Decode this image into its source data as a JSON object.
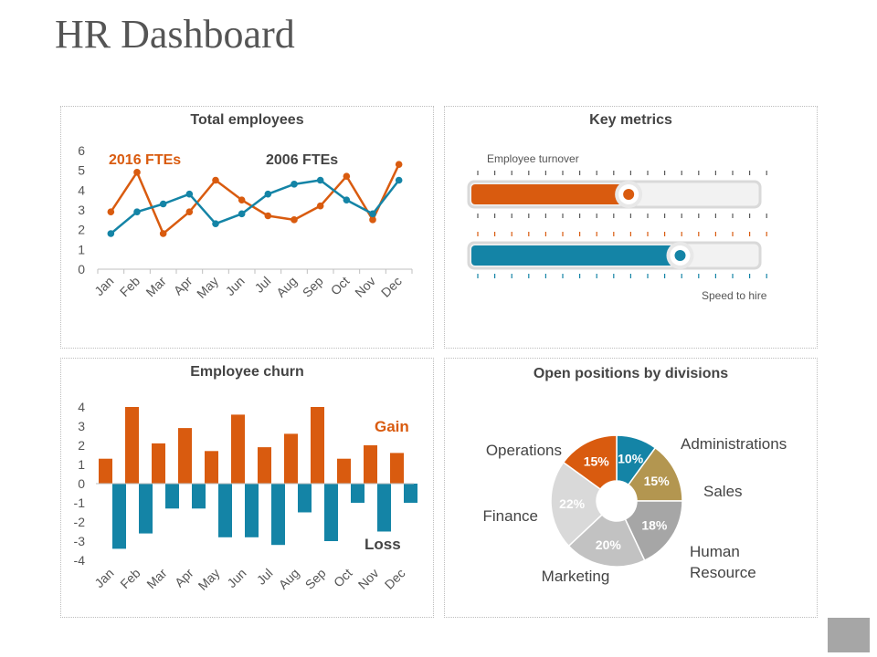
{
  "page": {
    "title": "HR Dashboard"
  },
  "colors": {
    "orange": "#d95b0f",
    "teal": "#1484a6",
    "gold": "#b39650",
    "gray_light": "#d9d9d9",
    "gray_mid": "#c2c2c2",
    "gray_dark": "#a6a6a6",
    "track": "#f2f2f2",
    "track_border": "#d9d9d9"
  },
  "panels": {
    "total_employees": {
      "title": "Total employees"
    },
    "key_metrics": {
      "title": "Key metrics"
    },
    "employee_churn": {
      "title": "Employee churn"
    },
    "open_positions": {
      "title": "Open positions by divisions"
    }
  },
  "chart_data": [
    {
      "id": "total-employees",
      "type": "line",
      "title": "Total employees",
      "categories": [
        "Jan",
        "Feb",
        "Mar",
        "Apr",
        "May",
        "Jun",
        "Jul",
        "Aug",
        "Sep",
        "Oct",
        "Nov",
        "Dec"
      ],
      "ylim": [
        0,
        6
      ],
      "yticks": [
        "0",
        "1",
        "2",
        "3",
        "4",
        "5",
        "6"
      ],
      "grid": false,
      "series": [
        {
          "name": "2016 FTEs",
          "color": "#d95b0f",
          "values": [
            2.9,
            4.9,
            1.8,
            2.9,
            4.5,
            3.5,
            2.7,
            2.5,
            3.2,
            4.7,
            2.5,
            5.3
          ]
        },
        {
          "name": "2006 FTEs",
          "color": "#1484a6",
          "values": [
            1.8,
            2.9,
            3.3,
            3.8,
            2.3,
            2.8,
            3.8,
            4.3,
            4.5,
            3.5,
            2.8,
            4.5
          ]
        }
      ]
    },
    {
      "id": "key-metrics",
      "type": "bar",
      "title": "Key metrics",
      "orientation": "horizontal-gauge",
      "series": [
        {
          "name": "Employee turnover",
          "color": "#d95b0f",
          "value": 0.55
        },
        {
          "name": "Speed to hire",
          "color": "#1484a6",
          "value": 0.73
        }
      ]
    },
    {
      "id": "employee-churn",
      "type": "bar",
      "title": "Employee churn",
      "categories": [
        "Jan",
        "Feb",
        "Mar",
        "Apr",
        "May",
        "Jun",
        "Jul",
        "Aug",
        "Sep",
        "Oct",
        "Nov",
        "Dec"
      ],
      "ylim": [
        -4,
        4
      ],
      "yticks": [
        "-4",
        "-3",
        "-2",
        "-1",
        "0",
        "1",
        "2",
        "3",
        "4"
      ],
      "grid": false,
      "series": [
        {
          "name": "Gain",
          "color": "#d95b0f",
          "values": [
            1.3,
            4.0,
            2.1,
            2.9,
            1.7,
            3.6,
            1.9,
            2.6,
            4.0,
            1.3,
            2.0,
            1.6
          ]
        },
        {
          "name": "Loss",
          "color": "#1484a6",
          "values": [
            -3.4,
            -2.6,
            -1.3,
            -1.3,
            -2.8,
            -2.8,
            -3.2,
            -1.5,
            -3.0,
            -1.0,
            -2.5,
            -1.0
          ]
        }
      ]
    },
    {
      "id": "open-positions",
      "type": "pie",
      "style": "donut",
      "title": "Open positions by divisions",
      "slices": [
        {
          "label": "Administrations",
          "value": 10,
          "text": "10%",
          "color": "#1484a6"
        },
        {
          "label": "Sales",
          "value": 15,
          "text": "15%",
          "color": "#b39650"
        },
        {
          "label": "Human\nResource",
          "value": 18,
          "text": "18%",
          "color": "#a6a6a6"
        },
        {
          "label": "Marketing",
          "value": 20,
          "text": "20%",
          "color": "#c2c2c2"
        },
        {
          "label": "Finance",
          "value": 22,
          "text": "22%",
          "color": "#d9d9d9"
        },
        {
          "label": "Operations",
          "value": 15,
          "text": "15%",
          "color": "#d95b0f"
        }
      ]
    }
  ]
}
